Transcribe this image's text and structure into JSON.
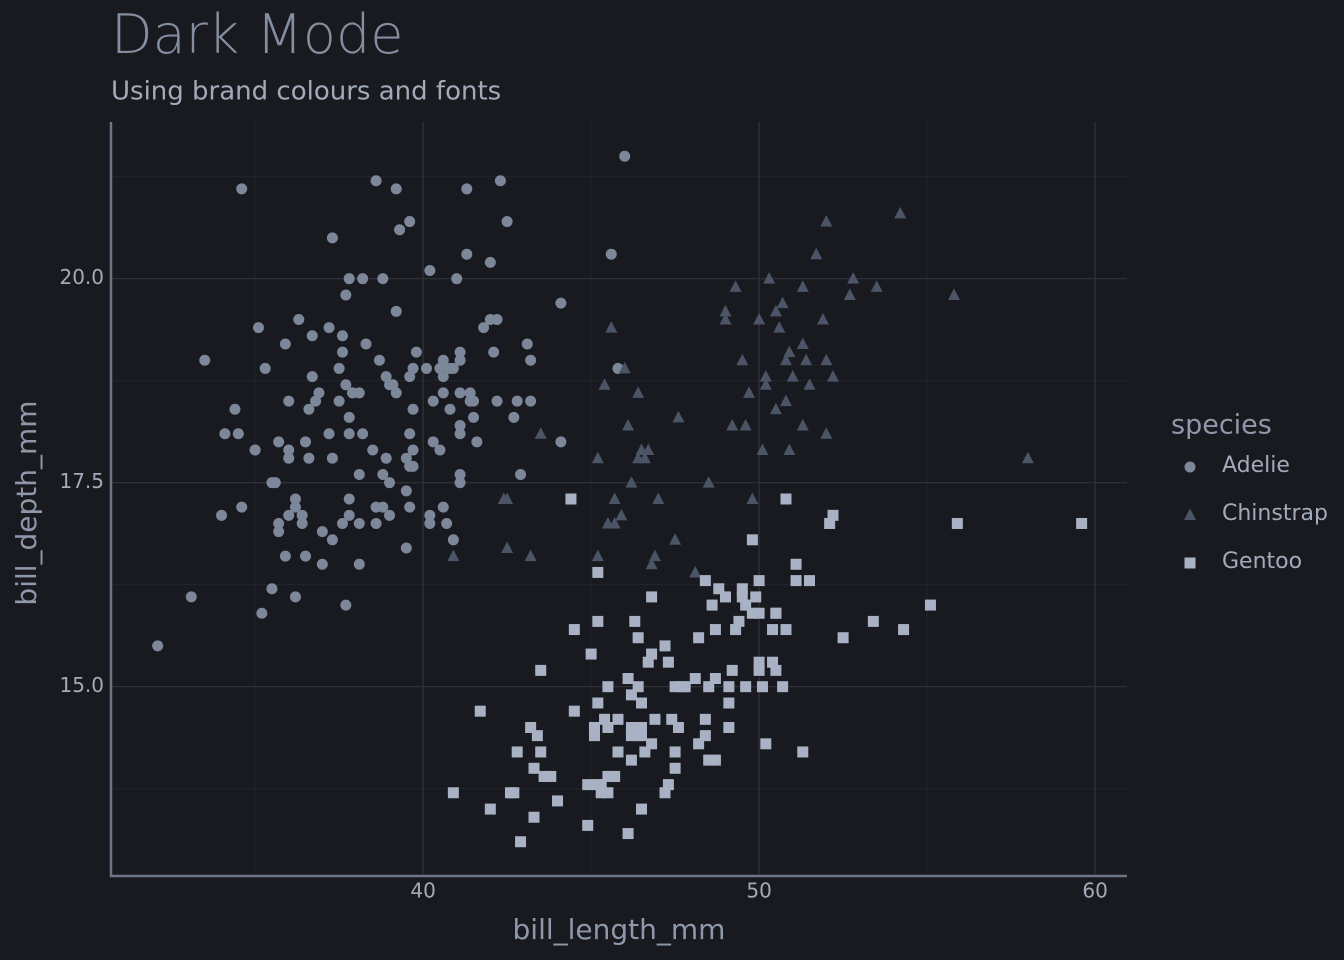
{
  "chart_data": {
    "type": "scatter",
    "title": "Dark Mode",
    "subtitle": "Using brand colours and fonts",
    "x_label": "bill_length_mm",
    "y_label": "bill_depth_mm",
    "legend_title": "species",
    "legend_position": "right",
    "grid": true,
    "xlim": [
      30.71,
      60.95
    ],
    "ylim": [
      12.68,
      21.92
    ],
    "xticks": [
      40,
      50,
      60
    ],
    "yticks": [
      {
        "value": 15,
        "label": "15.0"
      },
      17.5,
      {
        "value": 20,
        "label": "20.0"
      }
    ],
    "minor_xticks": [
      35,
      45,
      55
    ],
    "minor_yticks": [
      13.75,
      16.25,
      18.75,
      21.25
    ],
    "series": [
      {
        "name": "Adelie",
        "color": "#7d879a",
        "symbol": "circle",
        "x": [
          39.1,
          39.5,
          40.3,
          36.7,
          39.3,
          38.9,
          39.2,
          34.1,
          42.0,
          37.8,
          37.8,
          41.1,
          38.6,
          34.6,
          36.6,
          38.7,
          42.5,
          34.4,
          46.0,
          37.8,
          37.7,
          35.9,
          38.2,
          38.8,
          35.3,
          40.6,
          40.5,
          37.9,
          40.5,
          39.5,
          37.2,
          39.5,
          40.9,
          36.4,
          39.2,
          38.8,
          42.2,
          37.6,
          39.8,
          36.5,
          40.8,
          36.0,
          44.1,
          37.0,
          39.6,
          41.1,
          37.5,
          36.0,
          42.3,
          39.6,
          40.1,
          35.0,
          42.0,
          34.5,
          41.4,
          39.0,
          40.6,
          36.5,
          37.6,
          35.7,
          41.3,
          37.6,
          41.1,
          36.4,
          41.6,
          35.5,
          41.1,
          35.9,
          41.8,
          33.5,
          39.7,
          39.6,
          45.8,
          35.5,
          42.8,
          40.9,
          37.2,
          36.2,
          42.1,
          34.6,
          42.9,
          36.7,
          35.1,
          37.3,
          41.3,
          36.3,
          36.9,
          38.3,
          38.9,
          35.7,
          41.1,
          34.0,
          39.6,
          36.2,
          40.8,
          38.1,
          40.3,
          33.1,
          43.2,
          35.0,
          41.0,
          37.7,
          37.8,
          37.9,
          39.7,
          38.6,
          38.2,
          38.1,
          43.2,
          38.1,
          45.6,
          39.7,
          42.2,
          39.6,
          42.7,
          38.6,
          37.3,
          35.7,
          41.1,
          36.2,
          37.7,
          40.2,
          41.4,
          35.2,
          40.6,
          38.8,
          41.5,
          39.0,
          44.1,
          38.5,
          43.1,
          36.8,
          37.5,
          38.1,
          41.1,
          35.6,
          40.2,
          37.0,
          39.7,
          40.2,
          40.6,
          32.1,
          40.7,
          37.3,
          39.0,
          39.2,
          36.6,
          36.0,
          37.8,
          36.0,
          41.5
        ],
        "values": [
          18.7,
          17.4,
          18.0,
          19.3,
          20.6,
          17.8,
          19.6,
          18.1,
          20.2,
          17.1,
          17.3,
          17.6,
          21.2,
          21.1,
          17.8,
          19.0,
          20.7,
          18.4,
          21.5,
          18.3,
          18.7,
          19.2,
          18.1,
          17.2,
          18.9,
          18.6,
          17.9,
          18.6,
          18.9,
          16.7,
          18.1,
          17.8,
          18.9,
          17.0,
          21.1,
          20.0,
          18.5,
          19.3,
          19.1,
          18.0,
          18.4,
          18.5,
          19.7,
          16.9,
          18.8,
          19.0,
          18.9,
          17.9,
          21.2,
          17.7,
          18.9,
          17.9,
          19.5,
          18.1,
          18.6,
          17.5,
          18.8,
          16.6,
          19.1,
          16.9,
          21.1,
          17.0,
          18.2,
          17.1,
          18.0,
          16.2,
          19.1,
          16.6,
          19.4,
          19.0,
          18.4,
          17.2,
          18.9,
          17.5,
          18.5,
          16.8,
          19.4,
          16.1,
          19.1,
          17.2,
          17.6,
          18.8,
          19.4,
          17.8,
          20.3,
          19.5,
          18.6,
          19.2,
          18.8,
          18.0,
          18.1,
          17.1,
          18.1,
          17.3,
          18.9,
          18.6,
          18.5,
          16.1,
          18.5,
          17.9,
          20.0,
          16.0,
          20.0,
          18.6,
          18.9,
          17.2,
          20.0,
          17.0,
          19.0,
          16.5,
          20.3,
          17.7,
          19.5,
          20.7,
          18.3,
          17.0,
          20.5,
          17.0,
          18.6,
          17.2,
          19.8,
          17.0,
          18.5,
          15.9,
          19.0,
          17.6,
          18.3,
          17.1,
          18.0,
          17.9,
          19.2,
          18.5,
          18.5,
          17.6,
          17.5,
          17.5,
          20.1,
          16.5,
          17.9,
          17.1,
          17.2,
          15.5,
          17.0,
          16.8,
          18.7,
          18.6,
          18.4,
          17.8,
          18.1,
          17.1,
          18.5
        ]
      },
      {
        "name": "Chinstrap",
        "color": "#4b5567",
        "symbol": "triangle",
        "x": [
          46.5,
          50.0,
          51.3,
          45.4,
          52.7,
          45.2,
          46.1,
          51.3,
          46.0,
          51.3,
          46.6,
          51.7,
          47.0,
          52.0,
          45.9,
          50.5,
          50.3,
          58.0,
          46.4,
          49.2,
          42.4,
          48.5,
          43.2,
          50.6,
          46.7,
          52.0,
          50.5,
          49.5,
          46.4,
          52.8,
          40.9,
          54.2,
          42.5,
          51.0,
          49.7,
          47.5,
          47.6,
          52.0,
          46.9,
          53.5,
          49.0,
          46.2,
          50.9,
          45.5,
          50.9,
          50.8,
          50.1,
          49.0,
          51.5,
          49.8,
          48.1,
          51.4,
          45.7,
          50.7,
          42.5,
          52.2,
          45.2,
          49.3,
          50.2,
          45.6,
          51.9,
          46.8,
          45.7,
          55.8,
          43.5,
          49.6,
          50.8,
          50.2
        ],
        "values": [
          17.9,
          19.5,
          19.2,
          18.7,
          19.8,
          17.8,
          18.2,
          18.2,
          18.9,
          19.9,
          17.8,
          20.3,
          17.3,
          18.1,
          17.1,
          19.6,
          20.0,
          17.8,
          18.6,
          18.2,
          17.3,
          17.5,
          16.6,
          19.4,
          17.9,
          19.0,
          18.4,
          19.0,
          17.8,
          20.0,
          16.6,
          20.8,
          16.7,
          18.8,
          18.6,
          16.8,
          18.3,
          20.7,
          16.6,
          19.9,
          19.5,
          17.5,
          19.1,
          17.0,
          17.9,
          18.5,
          17.9,
          19.6,
          18.7,
          17.3,
          16.4,
          19.0,
          17.3,
          19.7,
          17.3,
          18.8,
          16.6,
          19.9,
          18.8,
          19.4,
          19.5,
          16.5,
          17.0,
          19.8,
          18.1,
          18.2,
          19.0,
          18.7
        ]
      },
      {
        "name": "Gentoo",
        "color": "#a8b2c4",
        "symbol": "square",
        "x": [
          46.1,
          50.0,
          48.7,
          50.0,
          47.6,
          46.5,
          45.4,
          46.7,
          43.3,
          46.8,
          40.9,
          49.0,
          45.5,
          48.4,
          45.8,
          49.3,
          42.0,
          49.2,
          46.2,
          48.7,
          50.2,
          45.1,
          46.5,
          46.3,
          42.9,
          46.1,
          47.8,
          48.2,
          50.0,
          47.3,
          42.8,
          45.1,
          59.6,
          49.1,
          48.4,
          42.6,
          44.4,
          44.0,
          48.7,
          42.7,
          49.6,
          45.3,
          49.6,
          50.5,
          43.6,
          45.5,
          50.5,
          44.9,
          45.2,
          46.6,
          48.5,
          45.1,
          50.1,
          46.5,
          45.0,
          43.8,
          45.5,
          43.2,
          50.4,
          45.3,
          46.2,
          45.7,
          54.3,
          45.8,
          49.8,
          46.2,
          49.5,
          43.5,
          50.7,
          47.7,
          46.4,
          48.2,
          46.5,
          46.4,
          48.6,
          47.5,
          51.1,
          45.2,
          45.2,
          49.1,
          52.5,
          47.4,
          50.0,
          44.9,
          50.8,
          43.4,
          51.3,
          47.5,
          52.1,
          47.5,
          52.2,
          45.5,
          49.5,
          44.5,
          50.8,
          49.4,
          46.9,
          48.4,
          51.1,
          48.5,
          55.9,
          47.2,
          49.1,
          47.3,
          46.8,
          41.7,
          53.4,
          43.3,
          48.1,
          50.5,
          49.8,
          43.5,
          51.5,
          46.2,
          55.1,
          44.5,
          48.8,
          47.2,
          46.8,
          50.4,
          45.2,
          49.9
        ],
        "values": [
          13.2,
          16.3,
          14.1,
          15.2,
          14.5,
          13.5,
          14.6,
          15.3,
          13.4,
          15.4,
          13.7,
          16.1,
          13.7,
          14.6,
          14.6,
          15.7,
          13.5,
          15.2,
          14.5,
          15.1,
          14.3,
          14.5,
          14.5,
          15.8,
          13.1,
          15.1,
          15.0,
          14.3,
          15.3,
          15.3,
          14.2,
          14.5,
          17.0,
          14.8,
          16.3,
          13.7,
          17.3,
          13.6,
          15.7,
          13.7,
          16.0,
          13.7,
          15.0,
          15.9,
          13.9,
          13.9,
          15.9,
          13.3,
          15.8,
          14.2,
          14.1,
          14.4,
          15.0,
          14.4,
          15.4,
          13.9,
          15.0,
          14.5,
          15.3,
          13.8,
          14.9,
          13.9,
          15.7,
          14.2,
          16.8,
          14.4,
          16.2,
          14.2,
          15.0,
          15.0,
          15.6,
          15.6,
          14.8,
          15.0,
          16.0,
          14.2,
          16.3,
          13.8,
          16.4,
          14.5,
          15.6,
          14.6,
          15.9,
          13.8,
          17.3,
          14.4,
          14.2,
          14.0,
          17.0,
          15.0,
          17.1,
          14.5,
          16.1,
          14.7,
          15.7,
          15.8,
          14.6,
          14.4,
          16.5,
          15.0,
          17.0,
          15.5,
          15.0,
          13.8,
          16.1,
          14.7,
          15.8,
          14.0,
          15.1,
          15.2,
          15.9,
          15.2,
          16.3,
          14.1,
          16.0,
          15.7,
          16.2,
          13.7,
          14.3,
          15.7,
          14.8,
          16.1
        ]
      }
    ]
  }
}
